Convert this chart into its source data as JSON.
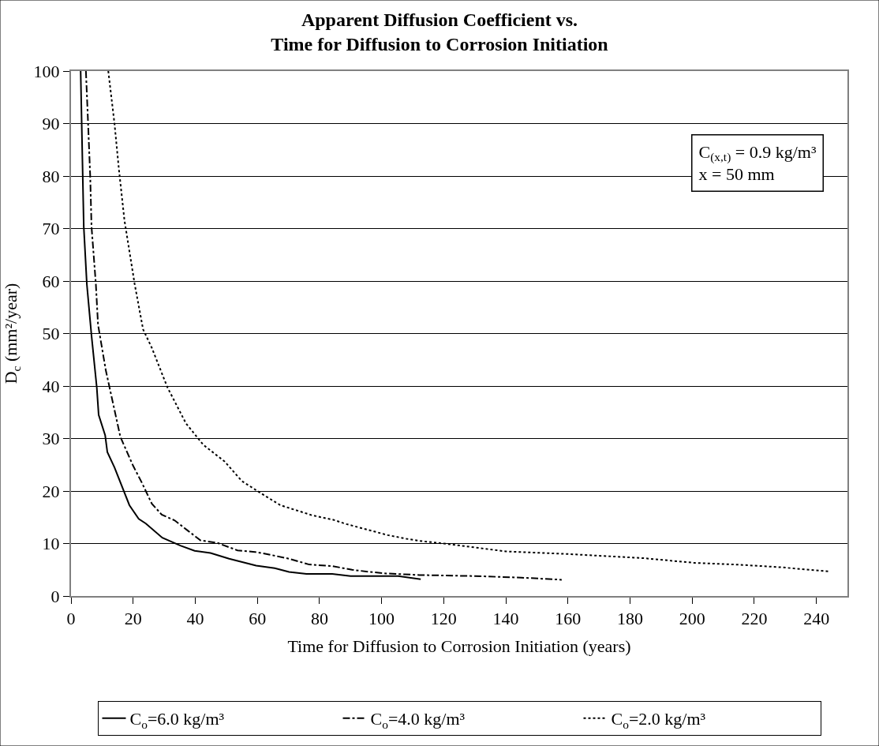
{
  "chart_data": {
    "type": "line",
    "title": "Apparent Diffusion Coefficient vs.\nTime for Diffusion to Corrosion Initiation",
    "xlabel": "Time for Diffusion to Corrosion Initiation (years)",
    "ylabel": "D$_{c}$ (mm²/year)",
    "xlim": [
      0,
      250
    ],
    "xticks": [
      0,
      20,
      40,
      60,
      80,
      100,
      120,
      140,
      160,
      180,
      200,
      220,
      240
    ],
    "ylim": [
      0,
      100
    ],
    "yticks": [
      0,
      10,
      20,
      30,
      40,
      50,
      60,
      70,
      80,
      90,
      100
    ],
    "grid": "y",
    "legend": "bottom",
    "marker": "none",
    "annotations": [
      "C$_{(x,t)}$ = 0.9 kg/m³\nx = 50 mm"
    ],
    "series": [
      {
        "name": "C$_{o}$=6.0 kg/m³",
        "color": "#000000",
        "line_style": "solid",
        "x": [
          3.1,
          4.1,
          5.1,
          6.6,
          8.3,
          8.9,
          11,
          11.7,
          14,
          18.8,
          21.8,
          24.1,
          29.4,
          35.2,
          39.8,
          44.9,
          50.9,
          59.6,
          65.6,
          70.2,
          75.8,
          84.1,
          90,
          105.3,
          112.6
        ],
        "values": [
          100,
          70.4,
          59.4,
          49.6,
          39.7,
          34.5,
          30.6,
          27.4,
          24.5,
          17.3,
          14.7,
          13.8,
          11.1,
          9.6,
          8.6,
          8.2,
          7.1,
          5.8,
          5.3,
          4.6,
          4.2,
          4.2,
          3.8,
          3.8,
          3.2
        ]
      },
      {
        "name": "C$_{o}$=4.0 kg/m³",
        "color": "#000000",
        "line_style": "dashed",
        "x": [
          4.8,
          5.5,
          6.2,
          6.6,
          8,
          8.7,
          11.2,
          15.9,
          20,
          22.8,
          26,
          29.2,
          33.4,
          37.5,
          41.7,
          47.2,
          53.6,
          59.2,
          63.8,
          70.2,
          76.7,
          84.1,
          90.5,
          96,
          101.6,
          112.2,
          130,
          145,
          158
        ],
        "values": [
          100,
          90,
          79.7,
          70.4,
          59.4,
          51.7,
          43,
          30.3,
          24.8,
          21.6,
          17.6,
          15.5,
          14.4,
          12.5,
          10.6,
          10.1,
          8.7,
          8.4,
          7.9,
          7.1,
          6,
          5.7,
          5,
          4.6,
          4.3,
          4,
          3.8,
          3.5,
          3.1
        ]
      },
      {
        "name": "C$_{o}$=2.0 kg/m³",
        "color": "#000000",
        "line_style": "dotted",
        "x": [
          12,
          14,
          15.4,
          17.2,
          20.5,
          23.2,
          26,
          31,
          37,
          42.6,
          49.5,
          55,
          61.9,
          67.4,
          77.5,
          84.5,
          88.7,
          95,
          102,
          108,
          112.2,
          120,
          140,
          160,
          184.6,
          201,
          214,
          228,
          244
        ],
        "values": [
          100,
          90,
          81.4,
          71.6,
          59.4,
          50.8,
          47.3,
          39.8,
          32.9,
          28.8,
          25.6,
          21.9,
          19.3,
          17.3,
          15.4,
          14.5,
          13.7,
          12.7,
          11.6,
          10.9,
          10.5,
          10,
          8.5,
          8,
          7.2,
          6.3,
          6,
          5.5,
          4.7
        ]
      }
    ]
  }
}
